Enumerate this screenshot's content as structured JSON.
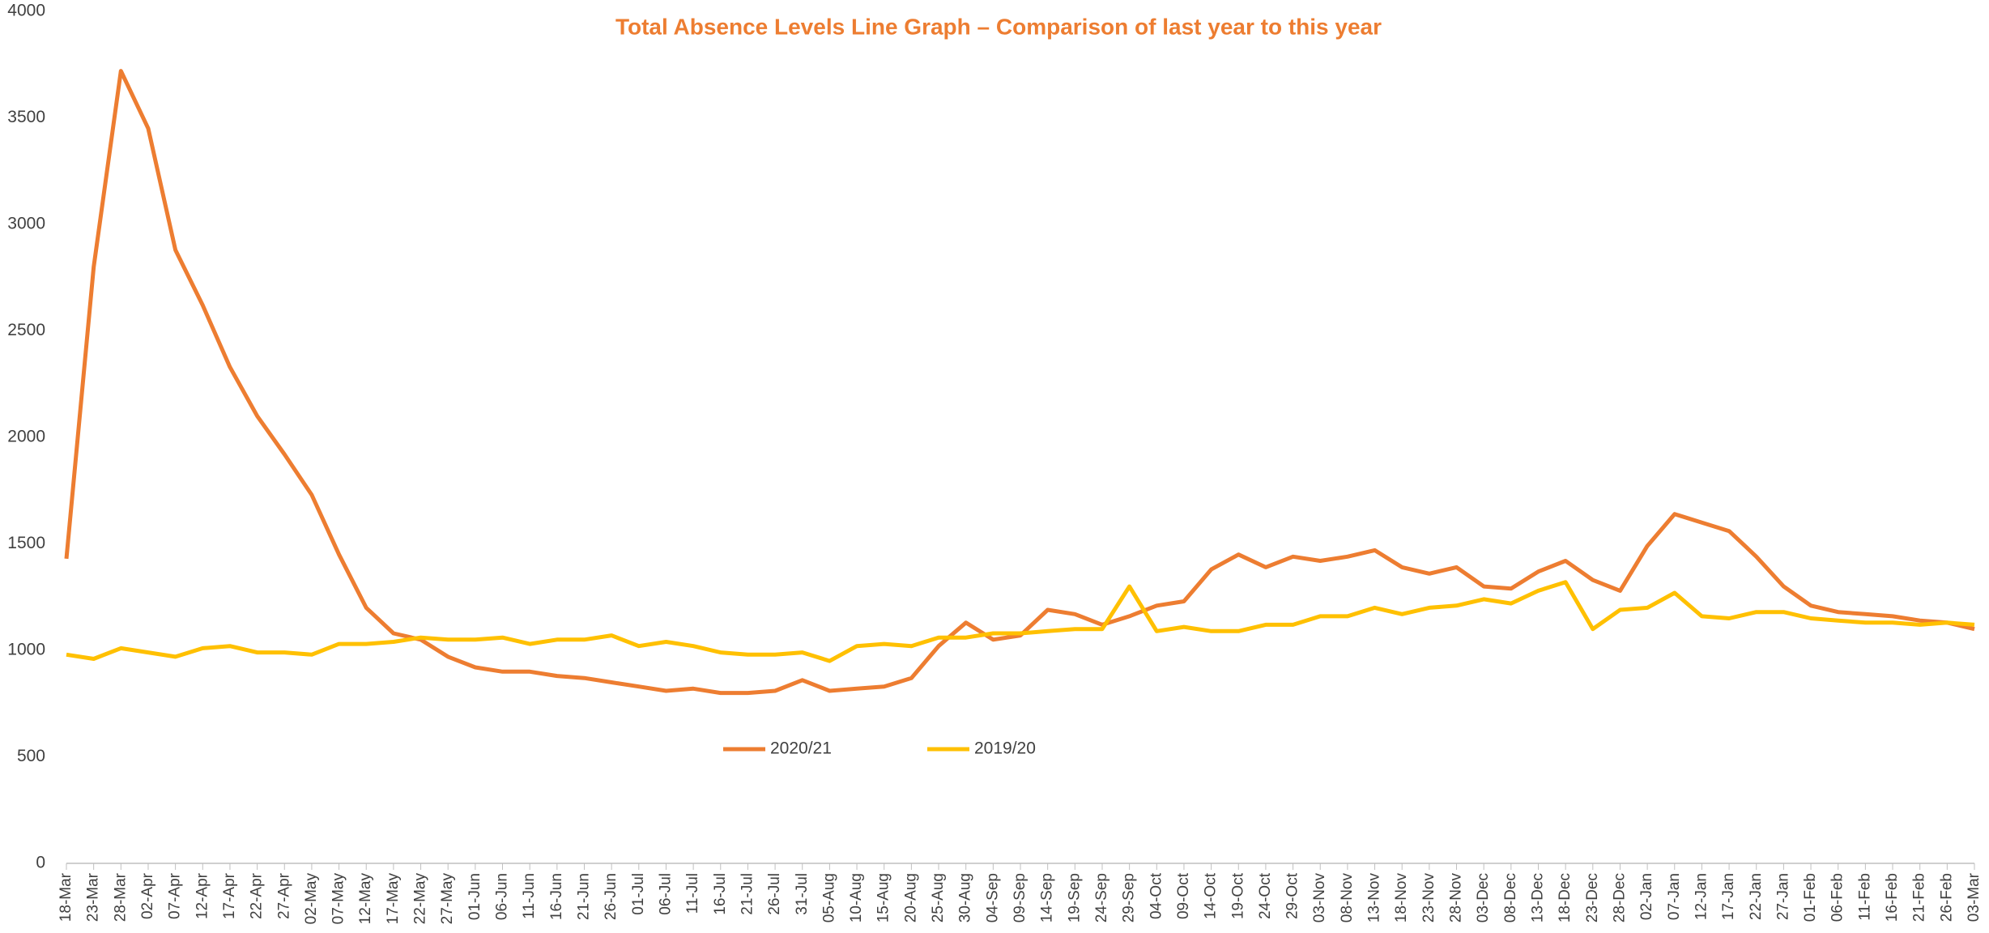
{
  "chart_data": {
    "type": "line",
    "title": "Total Absence Levels Line Graph – Comparison of last year to this year",
    "categories": [
      "18-Mar",
      "23-Mar",
      "28-Mar",
      "02-Apr",
      "07-Apr",
      "12-Apr",
      "17-Apr",
      "22-Apr",
      "27-Apr",
      "02-May",
      "07-May",
      "12-May",
      "17-May",
      "22-May",
      "27-May",
      "01-Jun",
      "06-Jun",
      "11-Jun",
      "16-Jun",
      "21-Jun",
      "26-Jun",
      "01-Jul",
      "06-Jul",
      "11-Jul",
      "16-Jul",
      "21-Jul",
      "26-Jul",
      "31-Jul",
      "05-Aug",
      "10-Aug",
      "15-Aug",
      "20-Aug",
      "25-Aug",
      "30-Aug",
      "04-Sep",
      "09-Sep",
      "14-Sep",
      "19-Sep",
      "24-Sep",
      "29-Sep",
      "04-Oct",
      "09-Oct",
      "14-Oct",
      "19-Oct",
      "24-Oct",
      "29-Oct",
      "03-Nov",
      "08-Nov",
      "13-Nov",
      "18-Nov",
      "23-Nov",
      "28-Nov",
      "03-Dec",
      "08-Dec",
      "13-Dec",
      "18-Dec",
      "23-Dec",
      "28-Dec",
      "02-Jan",
      "07-Jan",
      "12-Jan",
      "17-Jan",
      "22-Jan",
      "27-Jan",
      "01-Feb",
      "06-Feb",
      "11-Feb",
      "16-Feb",
      "21-Feb",
      "26-Feb",
      "03-Mar"
    ],
    "series": [
      {
        "name": "2020/21",
        "color": "#ED7D31",
        "values": [
          1430,
          2800,
          3720,
          3450,
          2880,
          2620,
          2330,
          2100,
          1920,
          1730,
          1450,
          1200,
          1080,
          1050,
          970,
          920,
          900,
          900,
          880,
          870,
          850,
          830,
          810,
          820,
          800,
          800,
          810,
          860,
          810,
          820,
          830,
          870,
          1020,
          1130,
          1050,
          1070,
          1190,
          1170,
          1120,
          1160,
          1210,
          1230,
          1380,
          1450,
          1390,
          1440,
          1420,
          1440,
          1470,
          1390,
          1360,
          1390,
          1300,
          1290,
          1370,
          1420,
          1330,
          1280,
          1490,
          1640,
          1600,
          1560,
          1440,
          1300,
          1210,
          1180,
          1170,
          1160,
          1140,
          1130,
          1100
        ]
      },
      {
        "name": "2019/20",
        "color": "#FFC000",
        "values": [
          980,
          960,
          1010,
          990,
          970,
          1010,
          1020,
          990,
          990,
          980,
          1030,
          1030,
          1040,
          1060,
          1050,
          1050,
          1060,
          1030,
          1050,
          1050,
          1070,
          1020,
          1040,
          1020,
          990,
          980,
          980,
          990,
          950,
          1020,
          1030,
          1020,
          1060,
          1060,
          1080,
          1080,
          1090,
          1100,
          1100,
          1300,
          1090,
          1110,
          1090,
          1090,
          1120,
          1120,
          1160,
          1160,
          1200,
          1170,
          1200,
          1210,
          1240,
          1220,
          1280,
          1320,
          1100,
          1190,
          1200,
          1270,
          1160,
          1150,
          1180,
          1180,
          1150,
          1140,
          1130,
          1130,
          1120,
          1130,
          1120
        ]
      }
    ],
    "ylim": [
      0,
      4000
    ],
    "yticks": [
      0,
      500,
      1000,
      1500,
      2000,
      2500,
      3000,
      3500,
      4000
    ],
    "grid": false
  }
}
